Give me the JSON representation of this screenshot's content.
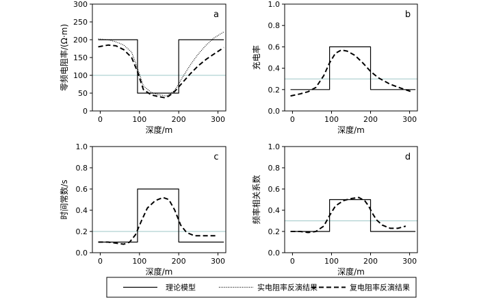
{
  "chart_data": [
    {
      "type": "line",
      "panel": "a",
      "xlabel": "深度/m",
      "ylabel": "零频电阻率/(Ω·m)",
      "xlim": [
        -20,
        320
      ],
      "ylim": [
        0,
        300
      ],
      "xticks": [
        0,
        100,
        200,
        300
      ],
      "yticks": [
        0,
        50,
        100,
        150,
        200,
        250,
        300
      ],
      "reference_line": 100,
      "series": [
        {
          "key": "theory",
          "x": [
            -5,
            95,
            95,
            200,
            200,
            315
          ],
          "y": [
            200,
            200,
            50,
            50,
            200,
            200
          ]
        },
        {
          "key": "real",
          "x": [
            -5,
            20,
            40,
            60,
            80,
            95,
            110,
            130,
            150,
            170,
            190,
            210,
            230,
            250,
            270,
            290,
            315
          ],
          "y": [
            202,
            200,
            194,
            185,
            165,
            120,
            70,
            52,
            45,
            42,
            58,
            95,
            130,
            160,
            185,
            205,
            222
          ]
        },
        {
          "key": "complex",
          "x": [
            -5,
            20,
            40,
            60,
            80,
            95,
            110,
            130,
            150,
            165,
            175,
            190,
            210,
            230,
            250,
            270,
            290,
            315
          ],
          "y": [
            180,
            185,
            183,
            172,
            150,
            110,
            60,
            45,
            40,
            37,
            42,
            55,
            80,
            105,
            127,
            145,
            160,
            178
          ]
        }
      ]
    },
    {
      "type": "line",
      "panel": "b",
      "xlabel": "深度/m",
      "ylabel": "充电率",
      "xlim": [
        -20,
        320
      ],
      "ylim": [
        0,
        1.0
      ],
      "xticks": [
        0,
        100,
        200,
        300
      ],
      "yticks": [
        0,
        0.2,
        0.4,
        0.6,
        0.8,
        1.0
      ],
      "reference_line": 0.3,
      "series": [
        {
          "key": "theory",
          "x": [
            -5,
            95,
            95,
            200,
            200,
            315
          ],
          "y": [
            0.2,
            0.2,
            0.6,
            0.6,
            0.2,
            0.2
          ]
        },
        {
          "key": "complex",
          "x": [
            -5,
            20,
            40,
            60,
            80,
            95,
            110,
            125,
            140,
            160,
            180,
            200,
            220,
            250,
            280,
            305
          ],
          "y": [
            0.14,
            0.16,
            0.18,
            0.22,
            0.33,
            0.45,
            0.54,
            0.57,
            0.56,
            0.52,
            0.45,
            0.37,
            0.31,
            0.25,
            0.21,
            0.18
          ]
        }
      ]
    },
    {
      "type": "line",
      "panel": "c",
      "xlabel": "深度/m",
      "ylabel": "时间常数/s",
      "xlim": [
        -20,
        320
      ],
      "ylim": [
        0,
        1.0
      ],
      "xticks": [
        0,
        100,
        200,
        300
      ],
      "yticks": [
        0,
        0.2,
        0.4,
        0.6,
        0.8,
        1.0
      ],
      "reference_line": 0.2,
      "series": [
        {
          "key": "theory",
          "x": [
            -5,
            95,
            95,
            200,
            200,
            315
          ],
          "y": [
            0.1,
            0.1,
            0.6,
            0.6,
            0.1,
            0.1
          ]
        },
        {
          "key": "complex",
          "x": [
            -5,
            20,
            40,
            60,
            75,
            90,
            105,
            120,
            140,
            160,
            175,
            190,
            205,
            220,
            240,
            270,
            300
          ],
          "y": [
            0.1,
            0.1,
            0.09,
            0.08,
            0.1,
            0.17,
            0.3,
            0.42,
            0.49,
            0.52,
            0.5,
            0.4,
            0.26,
            0.19,
            0.16,
            0.16,
            0.16
          ]
        }
      ]
    },
    {
      "type": "line",
      "panel": "d",
      "xlabel": "深度/m",
      "ylabel": "频率相关系数",
      "xlim": [
        -20,
        320
      ],
      "ylim": [
        0,
        1.0
      ],
      "xticks": [
        0,
        100,
        200,
        300
      ],
      "yticks": [
        0,
        0.2,
        0.4,
        0.6,
        0.8,
        1.0
      ],
      "reference_line": 0.3,
      "series": [
        {
          "key": "theory",
          "x": [
            -5,
            95,
            95,
            200,
            200,
            315
          ],
          "y": [
            0.2,
            0.2,
            0.5,
            0.5,
            0.2,
            0.2
          ]
        },
        {
          "key": "complex",
          "x": [
            -5,
            20,
            40,
            60,
            80,
            95,
            110,
            130,
            150,
            170,
            185,
            195,
            205,
            215,
            230,
            250,
            270,
            290
          ],
          "y": [
            0.2,
            0.2,
            0.19,
            0.2,
            0.25,
            0.35,
            0.44,
            0.49,
            0.51,
            0.52,
            0.49,
            0.44,
            0.37,
            0.31,
            0.26,
            0.23,
            0.23,
            0.25
          ]
        }
      ]
    }
  ],
  "legend": {
    "theory": "理论模型",
    "real": "实电阻率反演结果",
    "complex": "复电阻率反演结果"
  },
  "colors": {
    "reference_line": "#9ec7c7",
    "curve": "#000000"
  }
}
